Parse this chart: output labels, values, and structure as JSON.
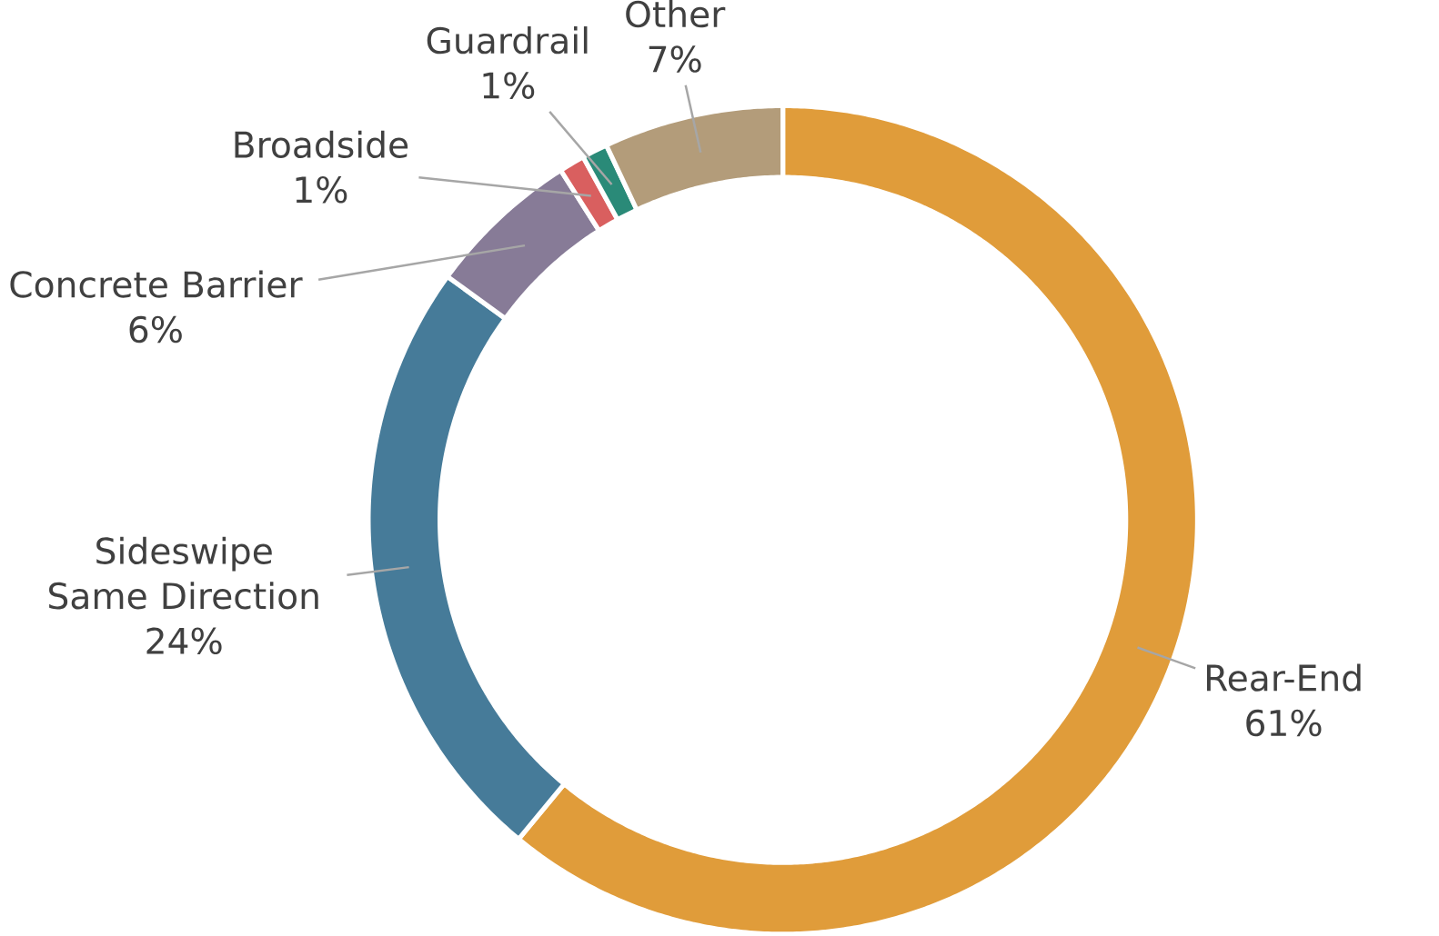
{
  "chart_data": {
    "type": "donut",
    "categories": [
      "Rear-End",
      "Sideswipe Same Direction",
      "Concrete Barrier",
      "Broadside",
      "Guardrail",
      "Other"
    ],
    "values": [
      61,
      24,
      6,
      1,
      1,
      7
    ],
    "value_labels": [
      "61%",
      "24%",
      "6%",
      "1%",
      "1%",
      "7%"
    ],
    "colors": [
      "#e09c3a",
      "#467b99",
      "#877b97",
      "#d95f5f",
      "#2a8a78",
      "#b39c7a"
    ]
  }
}
